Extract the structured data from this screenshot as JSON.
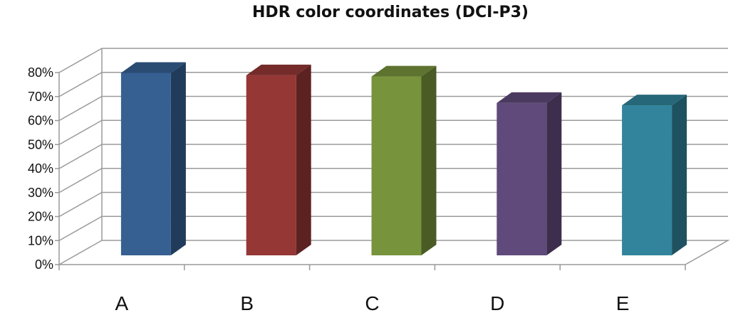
{
  "chart_data": {
    "type": "bar",
    "title": "HDR color coordinates (DCI-P3)",
    "categories": [
      "A",
      "B",
      "C",
      "D",
      "E"
    ],
    "values": [
      76,
      75,
      74.5,
      63.5,
      62.5
    ],
    "unit": "%",
    "ylim": [
      0,
      80
    ],
    "yticks": [
      "0%",
      "10%",
      "20%",
      "30%",
      "40%",
      "50%",
      "60%",
      "70%",
      "80%"
    ],
    "xlabel": "",
    "ylabel": "",
    "grid": true,
    "legend": "none",
    "style": "3d-column",
    "colors": [
      "#366092",
      "#953735",
      "#77933c",
      "#604a7b",
      "#31849b"
    ]
  }
}
